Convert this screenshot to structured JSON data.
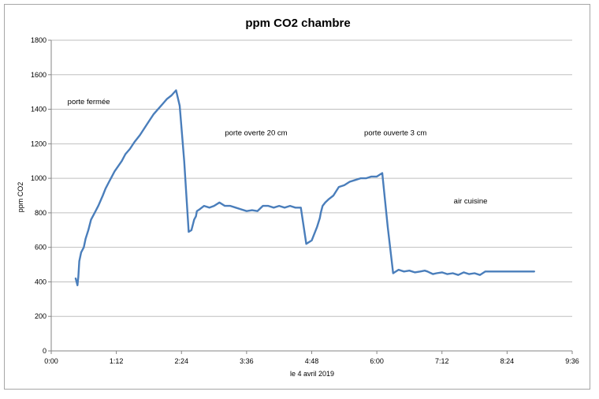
{
  "chart_data": {
    "type": "line",
    "title": "ppm CO2 chambre",
    "xlabel": "le 4 avril 2019",
    "ylabel": "ppm CO2",
    "xlim_minutes": [
      0,
      576
    ],
    "ylim": [
      0,
      1800
    ],
    "grid": true,
    "y_ticks": [
      "0",
      "200",
      "400",
      "600",
      "800",
      "1000",
      "1200",
      "1400",
      "1600",
      "1800"
    ],
    "x_ticks": [
      "0:00",
      "1:12",
      "2:24",
      "3:36",
      "4:48",
      "6:00",
      "7:12",
      "8:24",
      "9:36"
    ],
    "line_color": "#4a7ebb",
    "annotations": [
      {
        "text": "porte fermée",
        "x": "0:18",
        "y": 1430
      },
      {
        "text": "porte overte 20 cm",
        "x": "3:12",
        "y": 1250
      },
      {
        "text": "porte ouverte 3 cm",
        "x": "5:46",
        "y": 1250
      },
      {
        "text": "air cuisine",
        "x": "7:25",
        "y": 855
      }
    ],
    "series": [
      {
        "x": [
          "0:27",
          "0:29",
          "0:30",
          "0:31",
          "0:33",
          "0:36",
          "0:38",
          "0:41",
          "0:44",
          "0:48",
          "0:52",
          "0:57",
          "1:00",
          "1:04",
          "1:07",
          "1:10",
          "1:14",
          "1:18",
          "1:22",
          "1:27",
          "1:32",
          "1:38",
          "1:43",
          "1:48",
          "1:53",
          "1:58",
          "2:03",
          "2:08",
          "2:13",
          "2:18",
          "2:22",
          "2:27",
          "2:32",
          "2:35",
          "2:37",
          "2:38",
          "2:40",
          "2:41",
          "2:44",
          "2:49",
          "2:55",
          "3:00",
          "3:06",
          "3:12",
          "3:18",
          "3:24",
          "3:30",
          "3:36",
          "3:42",
          "3:48",
          "3:54",
          "4:00",
          "4:06",
          "4:12",
          "4:18",
          "4:24",
          "4:30",
          "4:36",
          "4:42",
          "4:48",
          "4:54",
          "4:57",
          "4:58",
          "5:00",
          "5:03",
          "5:07",
          "5:12",
          "5:18",
          "5:24",
          "5:30",
          "5:36",
          "5:42",
          "5:48",
          "5:54",
          "6:00",
          "6:06",
          "6:12",
          "6:18",
          "6:24",
          "6:30",
          "6:36",
          "6:42",
          "6:48",
          "6:53",
          "6:56",
          "6:58",
          "7:00",
          "7:02",
          "7:06",
          "7:12",
          "7:18",
          "7:24",
          "7:30",
          "7:36",
          "7:42",
          "7:48",
          "7:54",
          "8:00",
          "8:06",
          "8:12",
          "8:18",
          "8:24",
          "8:30",
          "8:36",
          "8:42",
          "8:48",
          "8:54"
        ],
        "values": [
          420,
          380,
          430,
          520,
          570,
          600,
          650,
          700,
          760,
          800,
          840,
          900,
          940,
          980,
          1010,
          1040,
          1070,
          1100,
          1140,
          1170,
          1210,
          1250,
          1290,
          1330,
          1370,
          1400,
          1430,
          1460,
          1480,
          1510,
          1420,
          1100,
          690,
          700,
          740,
          760,
          780,
          810,
          820,
          840,
          830,
          840,
          860,
          840,
          840,
          830,
          820,
          810,
          815,
          810,
          840,
          840,
          830,
          840,
          830,
          840,
          830,
          830,
          620,
          640,
          720,
          770,
          800,
          840,
          860,
          880,
          900,
          950,
          960,
          980,
          990,
          1000,
          1000,
          1010,
          1010,
          1030,
          720,
          450,
          470,
          460,
          465,
          455,
          460,
          465,
          460,
          455,
          450,
          445,
          450,
          455,
          445,
          450,
          440,
          455,
          445,
          450,
          440,
          460,
          460,
          460,
          460,
          460,
          460,
          460,
          460,
          460,
          460
        ]
      }
    ]
  }
}
